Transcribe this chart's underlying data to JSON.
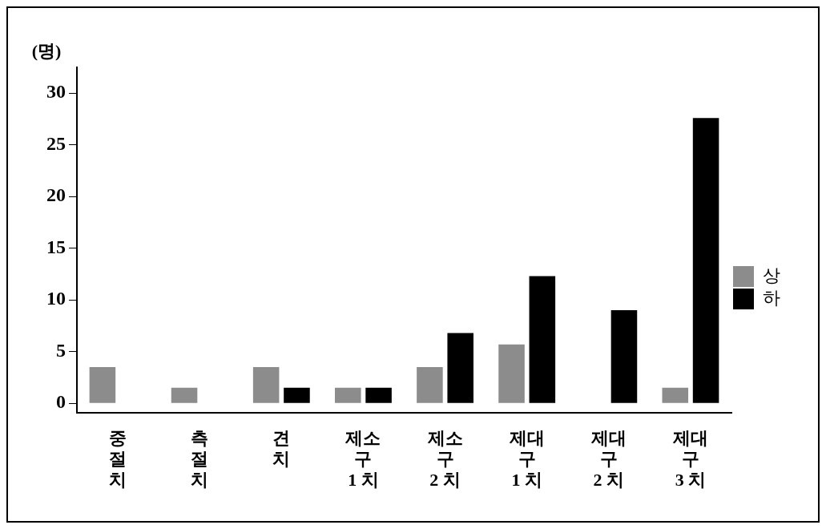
{
  "chart_data": {
    "type": "bar",
    "ylabel": "(명)",
    "categories": [
      "중\n절\n치",
      "측\n절\n치",
      "견\n치",
      "제소\n구\n1 치",
      "제소\n구\n2 치",
      "제대\n구\n1 치",
      "제대\n구\n2 치",
      "제대\n구\n3 치"
    ],
    "series": [
      {
        "name": "상",
        "color": "#8c8c8c",
        "values": [
          3.5,
          1.5,
          3.5,
          1.5,
          3.5,
          5.7,
          null,
          1.5
        ]
      },
      {
        "name": "하",
        "color": "#000000",
        "values": [
          null,
          null,
          1.5,
          1.5,
          6.8,
          12.3,
          9.0,
          27.6
        ]
      }
    ],
    "ylim": [
      -0.9,
      32.5
    ],
    "yticks": [
      0,
      5,
      10,
      15,
      20,
      25,
      30
    ],
    "grid": false,
    "legend": "right"
  }
}
